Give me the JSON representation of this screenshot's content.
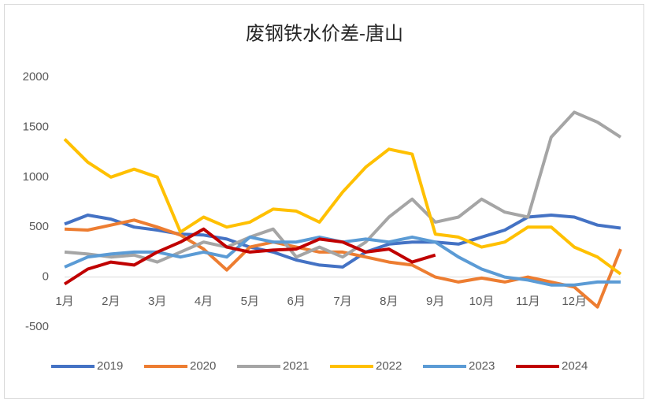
{
  "chart_data": {
    "type": "line",
    "title": "废钢铁水价差-唐山",
    "categories": [
      "1月",
      null,
      "2月",
      null,
      "3月",
      null,
      "4月",
      null,
      "5月",
      null,
      "6月",
      null,
      "7月",
      null,
      "8月",
      null,
      "9月",
      null,
      "10月",
      null,
      "11月",
      null,
      "12月",
      null,
      null
    ],
    "series": [
      {
        "name": "2019",
        "color": "#4472c4",
        "values": [
          530,
          620,
          580,
          500,
          470,
          430,
          420,
          380,
          300,
          250,
          170,
          120,
          100,
          250,
          330,
          350,
          350,
          330,
          400,
          470,
          600,
          620,
          600,
          520,
          490
        ]
      },
      {
        "name": "2020",
        "color": "#ed7d31",
        "values": [
          480,
          470,
          520,
          570,
          500,
          420,
          280,
          70,
          300,
          350,
          300,
          250,
          250,
          200,
          150,
          120,
          0,
          -50,
          -10,
          -50,
          0,
          -50,
          -100,
          -300,
          280
        ]
      },
      {
        "name": "2021",
        "color": "#a5a5a5",
        "values": [
          250,
          230,
          200,
          220,
          150,
          250,
          350,
          300,
          400,
          480,
          200,
          300,
          200,
          350,
          600,
          780,
          550,
          600,
          780,
          650,
          600,
          1400,
          1650,
          1550,
          1400
        ]
      },
      {
        "name": "2022",
        "color": "#ffc000",
        "values": [
          1380,
          1150,
          1000,
          1080,
          1000,
          450,
          600,
          500,
          550,
          680,
          660,
          550,
          850,
          1100,
          1280,
          1230,
          430,
          400,
          300,
          350,
          500,
          500,
          300,
          200,
          30
        ]
      },
      {
        "name": "2023",
        "color": "#5b9bd5",
        "values": [
          100,
          200,
          230,
          250,
          250,
          200,
          250,
          200,
          400,
          350,
          350,
          400,
          350,
          380,
          350,
          400,
          350,
          200,
          80,
          0,
          -30,
          -80,
          -80,
          -50,
          -50
        ]
      },
      {
        "name": "2024",
        "color": "#c00000",
        "values": [
          -70,
          80,
          150,
          120,
          250,
          350,
          480,
          300,
          250,
          270,
          280,
          380,
          350,
          250,
          280,
          150,
          220,
          null,
          null,
          null,
          null,
          null,
          null,
          null,
          null
        ]
      }
    ],
    "ylim": [
      -500,
      2000
    ],
    "yticks": [
      -500,
      0,
      500,
      1000,
      1500,
      2000
    ],
    "legend": "bottom"
  }
}
